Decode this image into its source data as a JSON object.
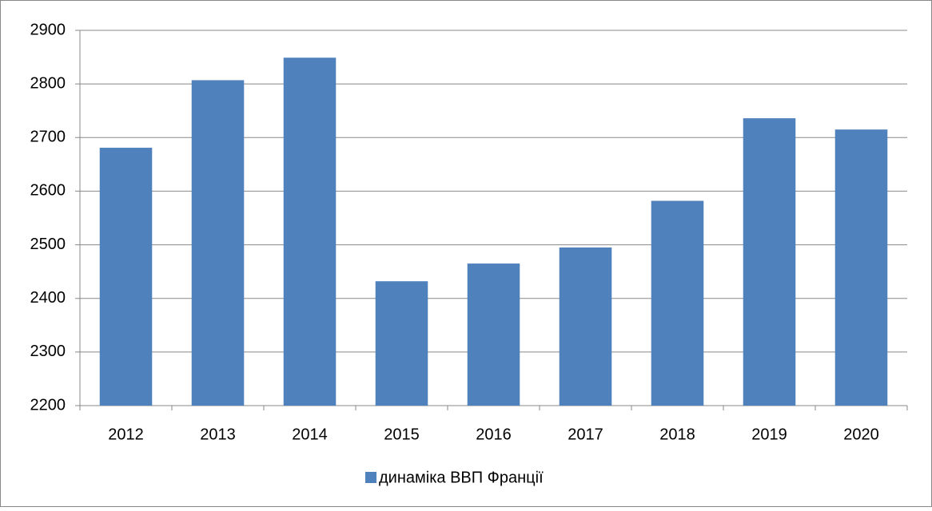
{
  "chart_data": {
    "type": "bar",
    "categories": [
      "2012",
      "2013",
      "2014",
      "2015",
      "2016",
      "2017",
      "2018",
      "2019",
      "2020"
    ],
    "series": [
      {
        "name": "динаміка ВВП Франції",
        "color": "#4f81bd",
        "values": [
          2681,
          2807,
          2849,
          2432,
          2465,
          2495,
          2582,
          2736,
          2715
        ]
      }
    ],
    "ylim": [
      2200,
      2900
    ],
    "yticks": [
      2200,
      2300,
      2400,
      2500,
      2600,
      2700,
      2800,
      2900
    ],
    "grid": true,
    "legend": "bottom"
  }
}
